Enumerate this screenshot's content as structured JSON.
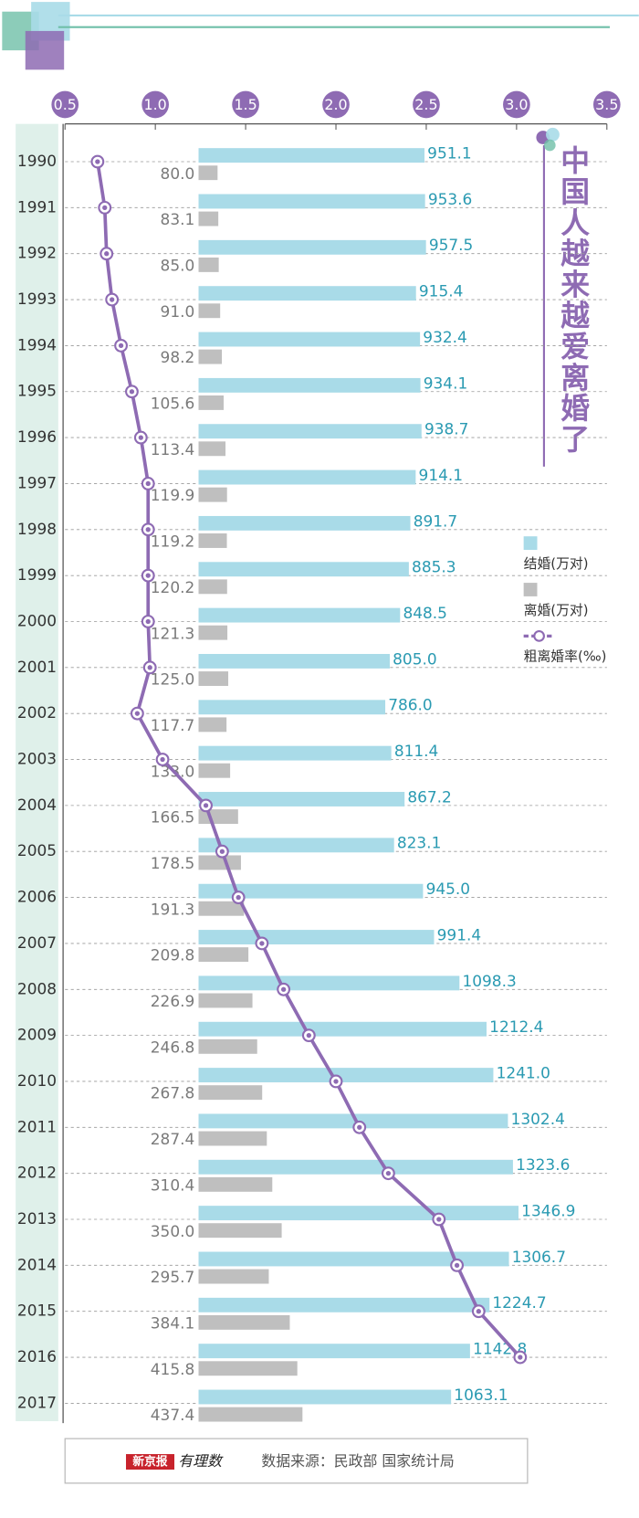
{
  "chart_data": {
    "type": "combo",
    "title": "中国人越来越爱离婚了",
    "source": "数据来源：民政部 国家统计局",
    "brand": [
      "新京报",
      "有理数"
    ],
    "categories": [
      "1990",
      "1991",
      "1992",
      "1993",
      "1994",
      "1995",
      "1996",
      "1997",
      "1998",
      "1999",
      "2000",
      "2001",
      "2002",
      "2003",
      "2004",
      "2005",
      "2006",
      "2007",
      "2008",
      "2009",
      "2010",
      "2011",
      "2012",
      "2013",
      "2014",
      "2015",
      "2016",
      "2017"
    ],
    "series": [
      {
        "name": "结婚(万对)",
        "type": "bar",
        "color": "#a9dbe8",
        "label_color": "#2a9ab2",
        "values": [
          951.1,
          953.6,
          957.5,
          915.4,
          932.4,
          934.1,
          938.7,
          914.1,
          891.7,
          885.3,
          848.5,
          805.0,
          786.0,
          811.4,
          867.2,
          823.1,
          945.0,
          991.4,
          1098.3,
          1212.4,
          1241.0,
          1302.4,
          1323.6,
          1346.9,
          1306.7,
          1224.7,
          1142.8,
          1063.1
        ],
        "value_labels": [
          "951.1",
          "953.6",
          "957.5",
          "915.4",
          "932.4",
          "934.1",
          "938.7",
          "914.1",
          "891.7",
          "885.3",
          "848.5",
          "805.0",
          "786.0",
          "811.4",
          "867.2",
          "823.1",
          "945.0",
          "991.4",
          "1098.3",
          "1212.4",
          "1241.0",
          "1302.4",
          "1323.6",
          "1346.9",
          "1306.7",
          "1224.7",
          "1142.8",
          "1063.1"
        ]
      },
      {
        "name": "离婚(万对)",
        "type": "bar",
        "color": "#bfbfbf",
        "label_color": "#7a7a7a",
        "values": [
          80.0,
          83.1,
          85.0,
          91.0,
          98.2,
          105.6,
          113.4,
          119.9,
          119.2,
          120.2,
          121.3,
          125.0,
          117.7,
          133.0,
          166.5,
          178.5,
          191.3,
          209.8,
          226.9,
          246.8,
          267.8,
          287.4,
          310.4,
          350.0,
          295.7,
          384.1,
          415.8,
          437.4
        ],
        "value_labels": [
          "80.0",
          "83.1",
          "85.0",
          "91.0",
          "98.2",
          "105.6",
          "113.4",
          "119.9",
          "119.2",
          "120.2",
          "121.3",
          "125.0",
          "117.7",
          "133.0",
          "166.5",
          "178.5",
          "191.3",
          "209.8",
          "226.9",
          "246.8",
          "267.8",
          "287.4",
          "310.4",
          "350.0",
          "295.7",
          "384.1",
          "415.8",
          "437.4"
        ]
      },
      {
        "name": "粗离婚率(‰)",
        "type": "line",
        "axis": "x",
        "color": "#8e6bb3",
        "values": [
          0.68,
          0.72,
          0.73,
          0.76,
          0.81,
          0.87,
          0.92,
          0.96,
          0.96,
          0.96,
          0.96,
          0.97,
          0.9,
          1.04,
          1.28,
          1.37,
          1.46,
          1.59,
          1.71,
          1.85,
          2.0,
          2.13,
          2.29,
          2.57,
          2.67,
          2.79,
          3.02,
          null
        ]
      }
    ],
    "xlim": [
      0.5,
      3.5
    ],
    "xticks": [
      0.5,
      {
        "value": 1,
        "label": "1.0"
      },
      1.5,
      {
        "value": 2,
        "label": "2.0"
      },
      2.5,
      {
        "value": 3,
        "label": "3.0"
      },
      3.5
    ],
    "grid": true
  }
}
